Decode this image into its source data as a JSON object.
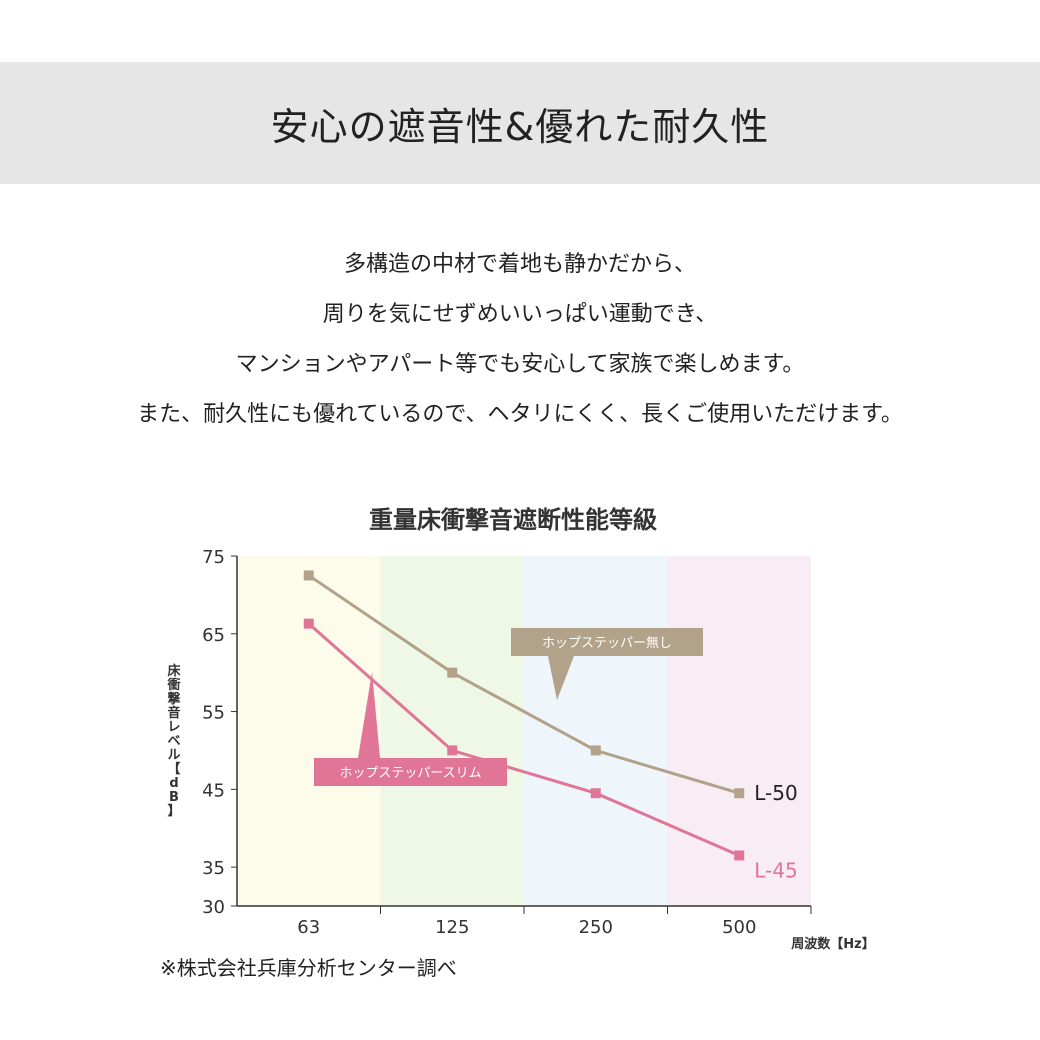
{
  "header": {
    "title": "安心の遮音性&優れた耐久性"
  },
  "description": [
    "多構造の中材で着地も静かだから、",
    "周りを気にせずめいいっぱい運動でき、",
    "マンションやアパート等でも安心して家族で楽しめます。",
    "また、耐久性にも優れているので、ヘタリにくく、長くご使用いただけます。"
  ],
  "footnote": "※株式会社兵庫分析センター調べ",
  "chart_data": {
    "type": "line",
    "title": "重量床衝撃音遮断性能等級",
    "ylabel": "床衝撃音レベル【dB】",
    "xlabel": "周波数【Hz】",
    "categories": [
      "63",
      "125",
      "250",
      "500"
    ],
    "yticks": [
      75,
      65,
      55,
      45,
      35,
      30
    ],
    "ylim": [
      30,
      75
    ],
    "band_colors": [
      "#fdfbea",
      "#eff7e6",
      "#eef6fb",
      "#f8ecf5"
    ],
    "series": [
      {
        "name": "ホップステッパー無し",
        "end_label": "L-50",
        "color": "#b3a28a",
        "values": [
          72.5,
          60,
          50,
          44.5
        ]
      },
      {
        "name": "ホップステッパースリム",
        "end_label": "L-45",
        "color": "#e07598",
        "values": [
          66.3,
          50,
          44.5,
          36.5
        ]
      }
    ],
    "grid": false
  }
}
